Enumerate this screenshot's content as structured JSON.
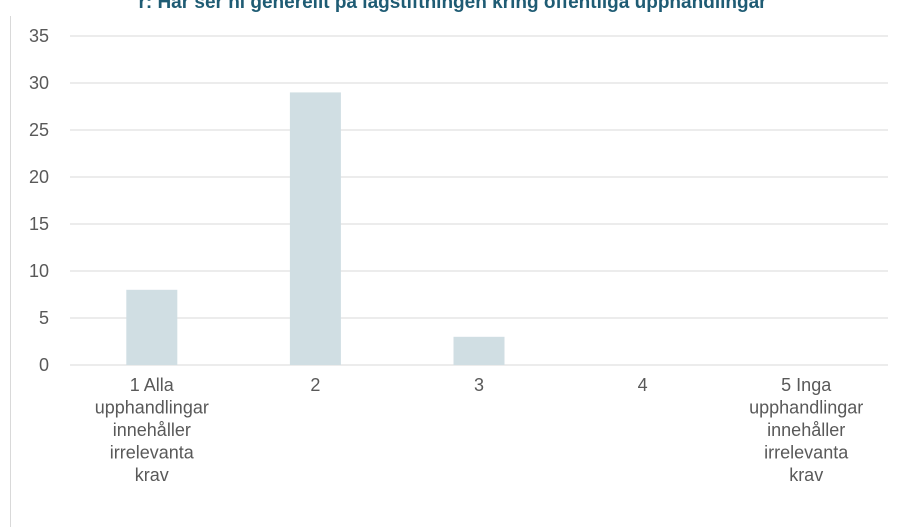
{
  "chart_data": {
    "type": "bar",
    "title": "r: Har ser ni generellt på lagstiftningen kring offentliga upphandlingar",
    "categories": [
      [
        "1 Alla",
        "upphandlingar",
        "innehåller",
        "irrelevanta",
        "krav"
      ],
      [
        "2"
      ],
      [
        "3"
      ],
      [
        "4"
      ],
      [
        "5 Inga",
        "upphandlingar",
        "innehåller",
        "irrelevanta",
        "krav"
      ]
    ],
    "values": [
      8,
      29,
      3,
      0,
      0
    ],
    "ylim": [
      0,
      35
    ],
    "yticks": [
      0,
      5,
      10,
      15,
      20,
      25,
      30,
      35
    ],
    "grid": true,
    "colors": {
      "bar": "#d0dee3",
      "grid": "#d9d9d9",
      "text": "#595959",
      "title": "#1f5c74"
    }
  }
}
